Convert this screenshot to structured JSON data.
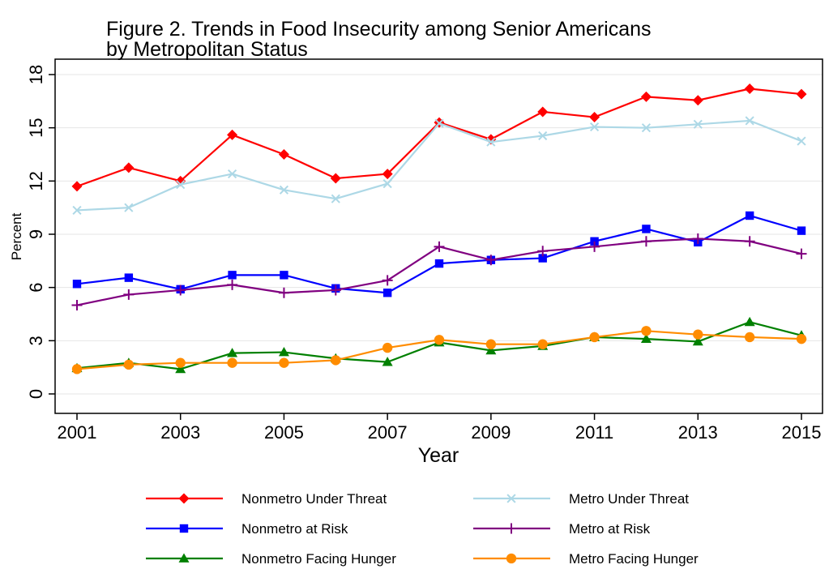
{
  "chart_data": {
    "type": "line",
    "title_lines": [
      "Figure 2.  Trends in Food Insecurity among Senior Americans",
      "by Metropolitan Status"
    ],
    "xlabel": "Year",
    "ylabel": "Percent",
    "x": [
      2001,
      2002,
      2003,
      2004,
      2005,
      2006,
      2007,
      2008,
      2009,
      2010,
      2011,
      2012,
      2013,
      2014,
      2015
    ],
    "xticks": [
      2001,
      2003,
      2005,
      2007,
      2009,
      2011,
      2013,
      2015
    ],
    "yticks": [
      0,
      3,
      6,
      9,
      12,
      15,
      18
    ],
    "xlim": [
      2001,
      2015
    ],
    "ylim": [
      0,
      18
    ],
    "grid": "horizontal",
    "legend_position": "bottom",
    "series": [
      {
        "name": "Nonmetro Under Threat",
        "color": "#ff0000",
        "marker": "diamond",
        "values": [
          11.7,
          12.75,
          12.0,
          14.6,
          13.5,
          12.15,
          12.4,
          15.3,
          14.35,
          15.9,
          15.6,
          16.75,
          16.55,
          17.2,
          16.9
        ]
      },
      {
        "name": "Metro Under Threat",
        "color": "#add8e6",
        "marker": "x",
        "values": [
          10.35,
          10.5,
          11.8,
          12.4,
          11.5,
          11.0,
          11.85,
          15.25,
          14.2,
          14.55,
          15.05,
          15.0,
          15.2,
          15.4,
          14.25
        ]
      },
      {
        "name": "Nonmetro at Risk",
        "color": "#0000ff",
        "marker": "square",
        "values": [
          6.2,
          6.55,
          5.9,
          6.7,
          6.7,
          5.95,
          5.7,
          7.35,
          7.55,
          7.65,
          8.6,
          9.3,
          8.55,
          10.05,
          9.2
        ]
      },
      {
        "name": "Metro at Risk",
        "color": "#800080",
        "marker": "plus",
        "values": [
          5.0,
          5.6,
          5.85,
          6.15,
          5.7,
          5.85,
          6.4,
          8.3,
          7.55,
          8.05,
          8.3,
          8.6,
          8.75,
          8.6,
          7.9
        ]
      },
      {
        "name": "Nonmetro Facing Hunger",
        "color": "#008000",
        "marker": "triangle",
        "values": [
          1.45,
          1.75,
          1.4,
          2.3,
          2.35,
          2.0,
          1.8,
          2.9,
          2.45,
          2.7,
          3.2,
          3.1,
          2.95,
          4.05,
          3.3
        ]
      },
      {
        "name": "Metro Facing Hunger",
        "color": "#ff8c00",
        "marker": "circle",
        "values": [
          1.4,
          1.65,
          1.75,
          1.75,
          1.75,
          1.9,
          2.6,
          3.05,
          2.8,
          2.8,
          3.2,
          3.55,
          3.35,
          3.2,
          3.1
        ]
      }
    ]
  }
}
